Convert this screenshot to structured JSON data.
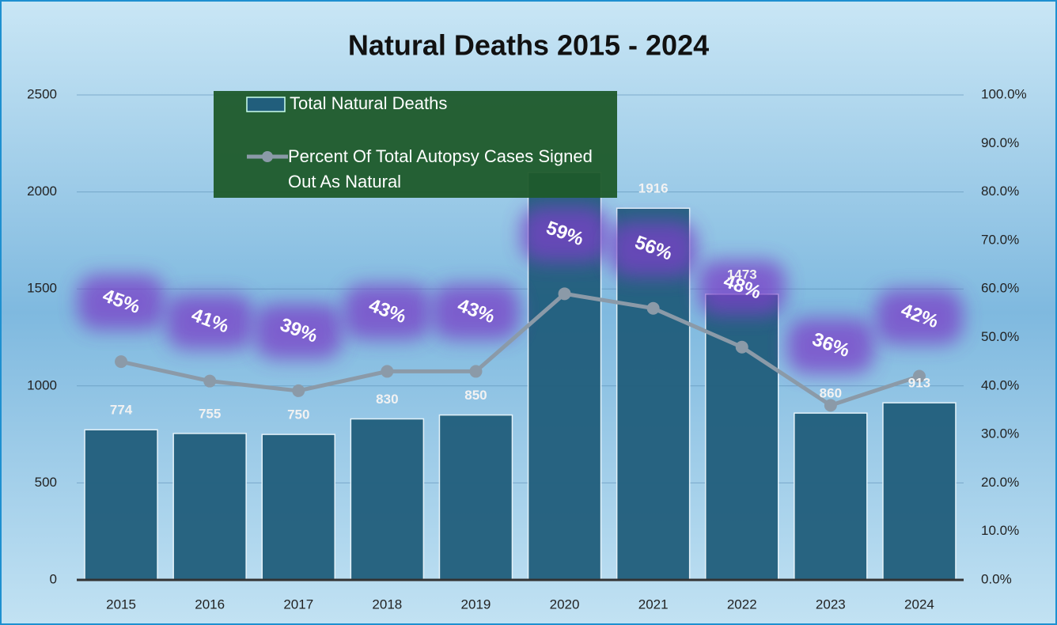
{
  "chart_data": {
    "type": "bar",
    "title": "Natural Deaths 2015 - 2024",
    "categories": [
      "2015",
      "2016",
      "2017",
      "2018",
      "2019",
      "2020",
      "2021",
      "2022",
      "2023",
      "2024"
    ],
    "series": [
      {
        "name": "Total Natural Deaths",
        "type": "bar",
        "color": "#215e7c",
        "values": [
          774,
          755,
          750,
          830,
          850,
          2100,
          1916,
          1473,
          860,
          913
        ],
        "value_labels": [
          "774",
          "755",
          "750",
          "830",
          "850",
          null,
          "1916",
          "1473",
          "860",
          "913"
        ]
      },
      {
        "name": "Percent Of Total Autopsy Cases Signed Out As Natural",
        "type": "line",
        "axis": "y2",
        "color": "#8b9aa8",
        "values": [
          45,
          41,
          39,
          43,
          43,
          59,
          56,
          48,
          36,
          42
        ],
        "value_labels": [
          "45%",
          "41%",
          "39%",
          "43%",
          "43%",
          "59%",
          "56%",
          "48%",
          "36%",
          "42%"
        ]
      }
    ],
    "ylim": [
      0,
      2500
    ],
    "yticks": [
      0,
      500,
      1000,
      1500,
      2000,
      2500
    ],
    "y2lim": [
      0,
      100
    ],
    "y2ticks": [
      {
        "value": 0,
        "label": "0.0%"
      },
      {
        "value": 10,
        "label": "10.0%"
      },
      {
        "value": 20,
        "label": "20.0%"
      },
      {
        "value": 30,
        "label": "30.0%"
      },
      {
        "value": 40,
        "label": "40.0%"
      },
      {
        "value": 50,
        "label": "50.0%"
      },
      {
        "value": 60,
        "label": "60.0%"
      },
      {
        "value": 70,
        "label": "70.0%"
      },
      {
        "value": 80,
        "label": "80.0%"
      },
      {
        "value": 90,
        "label": "90.0%"
      },
      {
        "value": 100,
        "label": "100.0%"
      }
    ],
    "grid": true
  }
}
